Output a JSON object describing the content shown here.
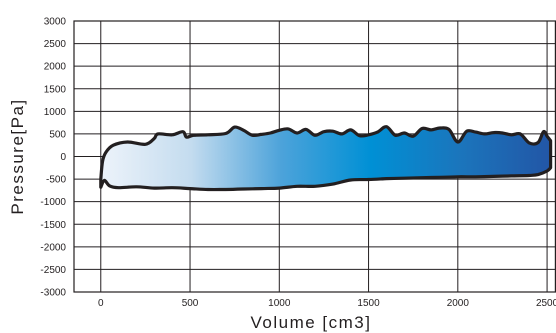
{
  "chart_data": {
    "type": "area",
    "xlabel": "Volume [cm3]",
    "ylabel": "Pressure[Pa]",
    "xlim": [
      -150,
      2550
    ],
    "ylim": [
      -3000,
      3000
    ],
    "x_ticks": [
      0,
      500,
      1000,
      1500,
      2000,
      2500
    ],
    "y_ticks": [
      3000,
      2500,
      2000,
      1500,
      1000,
      500,
      0,
      -500,
      -1000,
      -1500,
      -2000,
      -2500,
      -3000
    ],
    "grid": true,
    "upper_boundary": {
      "x": [
        0,
        10,
        30,
        70,
        150,
        250,
        300,
        320,
        400,
        460,
        480,
        520,
        600,
        700,
        750,
        800,
        850,
        900,
        950,
        1000,
        1050,
        1100,
        1150,
        1200,
        1250,
        1300,
        1350,
        1400,
        1450,
        1500,
        1550,
        1600,
        1650,
        1700,
        1750,
        1800,
        1850,
        1900,
        1950,
        2000,
        2050,
        2100,
        2150,
        2200,
        2250,
        2300,
        2350,
        2400,
        2450,
        2480,
        2500,
        2520
      ],
      "y": [
        -500,
        -100,
        100,
        250,
        320,
        270,
        400,
        500,
        480,
        550,
        430,
        470,
        480,
        510,
        650,
        580,
        470,
        490,
        520,
        580,
        610,
        520,
        600,
        470,
        550,
        560,
        500,
        590,
        460,
        480,
        540,
        660,
        470,
        520,
        450,
        620,
        590,
        630,
        600,
        320,
        560,
        540,
        500,
        530,
        520,
        480,
        500,
        300,
        310,
        550,
        450,
        350
      ]
    },
    "lower_boundary": {
      "x": [
        0,
        20,
        50,
        100,
        200,
        300,
        400,
        500,
        600,
        700,
        800,
        900,
        1000,
        1100,
        1200,
        1300,
        1400,
        1500,
        1600,
        1700,
        1800,
        1900,
        2000,
        2100,
        2200,
        2300,
        2400,
        2450,
        2500,
        2520
      ],
      "y": [
        -680,
        -530,
        -650,
        -690,
        -670,
        -700,
        -690,
        -710,
        -730,
        -730,
        -720,
        -710,
        -700,
        -660,
        -660,
        -610,
        -520,
        -510,
        -490,
        -480,
        -470,
        -460,
        -450,
        -450,
        -440,
        -430,
        -420,
        -400,
        -320,
        -250
      ]
    },
    "fill_gradient": [
      "#edf3fa",
      "#c4dcef",
      "#4da3da",
      "#0090d5",
      "#1b75bc",
      "#2256a6"
    ],
    "outline_color": "#231f20"
  }
}
